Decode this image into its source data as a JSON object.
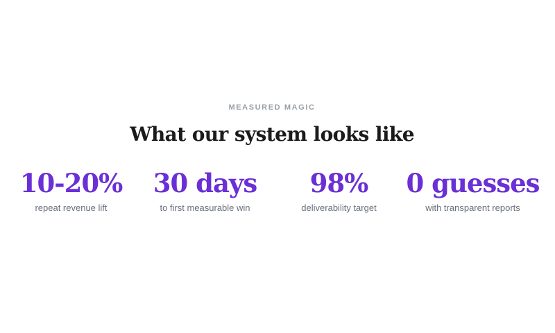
{
  "section": {
    "eyebrow": "MEASURED MAGIC",
    "heading": "What our system looks like",
    "stats": [
      {
        "value": "10-20%",
        "label": "repeat revenue lift"
      },
      {
        "value": "30 days",
        "label": "to first measurable win"
      },
      {
        "value": "98%",
        "label": "deliverability target"
      },
      {
        "value": "0 guesses",
        "label": "with transparent reports"
      }
    ],
    "colors": {
      "accent": "#6b2fd6",
      "heading_text": "#1b1b1b",
      "eyebrow_text": "#9aa0a6",
      "label_text": "#68707c",
      "background": "#ffffff"
    }
  }
}
